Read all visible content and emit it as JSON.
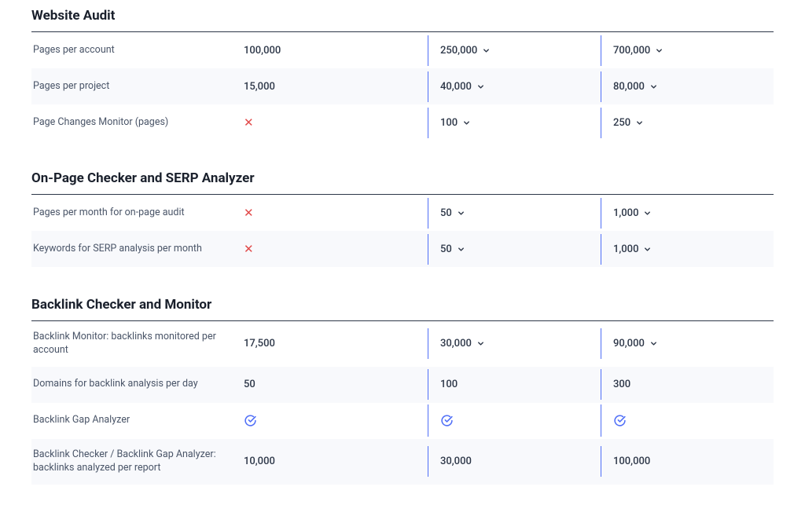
{
  "colors": {
    "divider": "#4f6ef7",
    "x_mark": "#e14b4b",
    "check_mark": "#4f6ef7",
    "chevron": "#2d3748",
    "text": "#2d3748",
    "alt_row_bg": "#f8f9fc",
    "section_border": "#2d3748"
  },
  "sections": [
    {
      "title": "Website Audit",
      "rows": [
        {
          "label": "Pages per account",
          "alt": false,
          "values": [
            {
              "type": "text",
              "text": "100,000",
              "dropdown": false
            },
            {
              "type": "text",
              "text": "250,000",
              "dropdown": true
            },
            {
              "type": "text",
              "text": "700,000",
              "dropdown": true
            }
          ]
        },
        {
          "label": "Pages per project",
          "alt": true,
          "values": [
            {
              "type": "text",
              "text": "15,000",
              "dropdown": false
            },
            {
              "type": "text",
              "text": "40,000",
              "dropdown": true
            },
            {
              "type": "text",
              "text": "80,000",
              "dropdown": true
            }
          ]
        },
        {
          "label": "Page Changes Monitor (pages)",
          "alt": false,
          "values": [
            {
              "type": "x"
            },
            {
              "type": "text",
              "text": "100",
              "dropdown": true
            },
            {
              "type": "text",
              "text": "250",
              "dropdown": true
            }
          ]
        }
      ]
    },
    {
      "title": "On-Page Checker and SERP Analyzer",
      "rows": [
        {
          "label": "Pages per month for on-page audit",
          "alt": false,
          "values": [
            {
              "type": "x"
            },
            {
              "type": "text",
              "text": "50",
              "dropdown": true
            },
            {
              "type": "text",
              "text": "1,000",
              "dropdown": true
            }
          ]
        },
        {
          "label": "Keywords for SERP analysis per month",
          "alt": true,
          "values": [
            {
              "type": "x"
            },
            {
              "type": "text",
              "text": "50",
              "dropdown": true
            },
            {
              "type": "text",
              "text": "1,000",
              "dropdown": true
            }
          ]
        }
      ]
    },
    {
      "title": "Backlink Checker and Monitor",
      "rows": [
        {
          "label": "Backlink Monitor: backlinks monitored per account",
          "alt": false,
          "values": [
            {
              "type": "text",
              "text": "17,500",
              "dropdown": false
            },
            {
              "type": "text",
              "text": "30,000",
              "dropdown": true
            },
            {
              "type": "text",
              "text": "90,000",
              "dropdown": true
            }
          ]
        },
        {
          "label": "Domains for backlink analysis per day",
          "alt": true,
          "values": [
            {
              "type": "text",
              "text": "50",
              "dropdown": false
            },
            {
              "type": "text",
              "text": "100",
              "dropdown": false
            },
            {
              "type": "text",
              "text": "300",
              "dropdown": false
            }
          ]
        },
        {
          "label": "Backlink Gap Analyzer",
          "alt": false,
          "values": [
            {
              "type": "check"
            },
            {
              "type": "check"
            },
            {
              "type": "check"
            }
          ]
        },
        {
          "label": "Backlink Checker / Backlink Gap Analyzer: backlinks analyzed per report",
          "alt": true,
          "values": [
            {
              "type": "text",
              "text": "10,000",
              "dropdown": false
            },
            {
              "type": "text",
              "text": "30,000",
              "dropdown": false
            },
            {
              "type": "text",
              "text": "100,000",
              "dropdown": false
            }
          ]
        }
      ]
    }
  ]
}
